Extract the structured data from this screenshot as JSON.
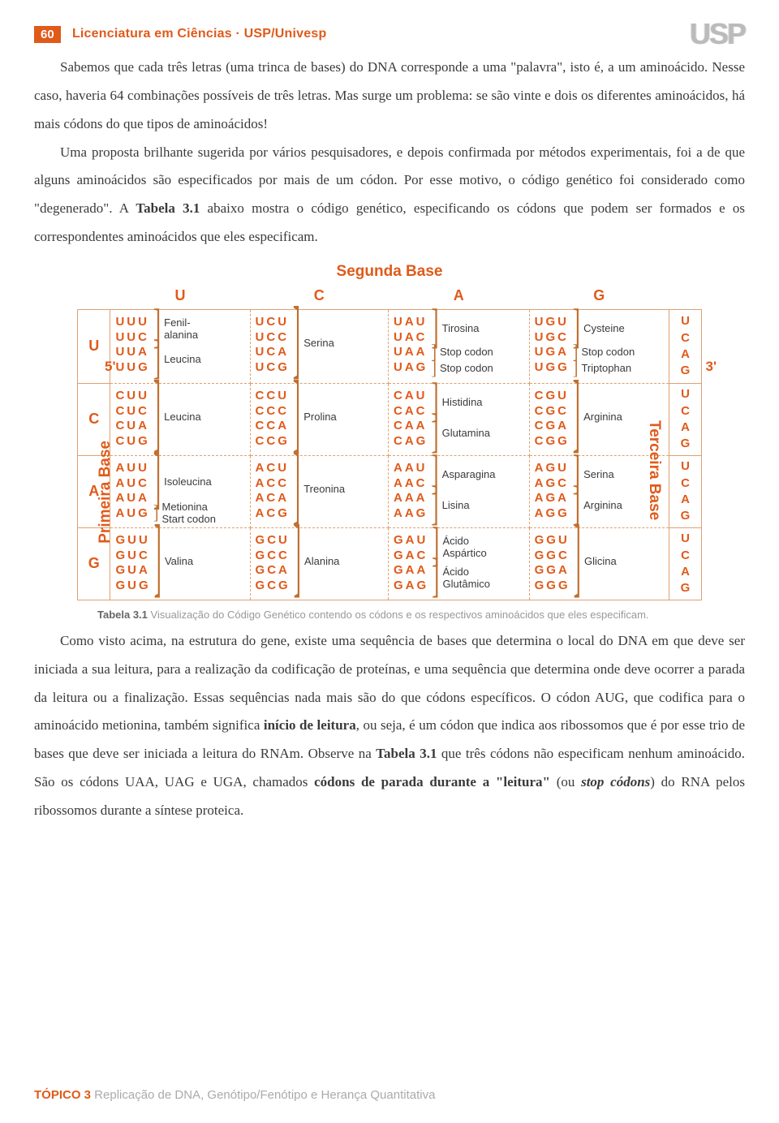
{
  "header": {
    "page_number": "60",
    "course": "Licenciatura em Ciências · USP/Univesp",
    "logo": "USP"
  },
  "paragraphs": {
    "p1": "Sabemos que cada três letras (uma trinca de bases) do DNA corresponde a uma \"palavra\", isto é, a um aminoácido. Nesse caso, haveria 64 combinações possíveis de três letras. Mas surge um problema: se são vinte e dois os diferentes aminoácidos, há mais códons do que tipos de aminoácidos!",
    "p2a": "Uma proposta brilhante sugerida por vários pesquisadores, e depois confirmada por métodos experimentais, foi a de que alguns aminoácidos são especificados por mais de um códon. Por esse motivo, o código genético foi considerado como \"degenerado\". A ",
    "p2b": "Tabela 3.1",
    "p2c": " abaixo mostra o código genético, especificando os códons que podem ser formados e os correspondentes aminoácidos que eles especificam.",
    "p3a": "Como visto acima, na estrutura do gene, existe uma sequência de bases que determina o local do DNA em que deve ser iniciada a sua leitura, para a realização da codificação de proteínas, e uma sequência que determina onde deve ocorrer a parada da leitura ou a finalização. Essas sequências nada mais são do que códons específicos. O códon AUG, que codifica para o aminoácido metionina, também significa ",
    "p3b": "início de leitura",
    "p3c": ", ou seja, é um códon que indica aos ribossomos que é por esse trio de bases que deve ser iniciada a leitura do RNAm. Observe na ",
    "p3d": "Tabela 3.1",
    "p3e": " que três códons não especificam nenhum aminoácido. São os códons UAA, UAG e UGA, chamados ",
    "p3f": "códons de parada durante a \"leitura\"",
    "p3g": " (ou ",
    "p3h": "stop códons",
    "p3i": ") do RNA pelos ribossomos durante a síntese proteica."
  },
  "table_labels": {
    "top": "Segunda Base",
    "left": "Primeira Base",
    "right": "Terceira Base",
    "five": "5'",
    "three": "3'",
    "cols": {
      "u": "U",
      "c": "C",
      "a": "A",
      "g": "G"
    },
    "rows": {
      "u": "U",
      "c": "C",
      "a": "A",
      "g": "G"
    },
    "third": {
      "u": "U",
      "c": "C",
      "a": "A",
      "g": "G"
    }
  },
  "codon_table": {
    "U": {
      "U": [
        [
          "UUU",
          "UUC",
          "Fenil-\nalanina"
        ],
        [
          "UUA",
          "UUG",
          "Leucina"
        ]
      ],
      "C": [
        [
          "UCU",
          "UCC",
          "UCA",
          "UCG",
          "Serina"
        ]
      ],
      "A": [
        [
          "UAU",
          "UAC",
          "Tirosina"
        ],
        [
          "UAA",
          "",
          "Stop codon"
        ],
        [
          "UAG",
          "",
          "Stop codon"
        ]
      ],
      "G": [
        [
          "UGU",
          "UGC",
          "Cysteine"
        ],
        [
          "UGA",
          "",
          "Stop codon"
        ],
        [
          "UGG",
          "",
          "Triptophan"
        ]
      ]
    },
    "C": {
      "U": [
        [
          "CUU",
          "CUC",
          "CUA",
          "CUG",
          "Leucina"
        ]
      ],
      "C": [
        [
          "CCU",
          "CCC",
          "CCA",
          "CCG",
          "Prolina"
        ]
      ],
      "A": [
        [
          "CAU",
          "CAC",
          "Histidina"
        ],
        [
          "CAA",
          "CAG",
          "Glutamina"
        ]
      ],
      "G": [
        [
          "CGU",
          "CGC",
          "CGA",
          "CGG",
          "Arginina"
        ]
      ]
    },
    "A": {
      "U": [
        [
          "AUU",
          "AUC",
          "AUA",
          "Isoleucina"
        ],
        [
          "AUG",
          "",
          "Metionina\nStart codon"
        ]
      ],
      "C": [
        [
          "ACU",
          "ACC",
          "ACA",
          "ACG",
          "Treonina"
        ]
      ],
      "A": [
        [
          "AAU",
          "AAC",
          "Asparagina"
        ],
        [
          "AAA",
          "AAG",
          "Lisina"
        ]
      ],
      "G": [
        [
          "AGU",
          "AGC",
          "Serina"
        ],
        [
          "AGA",
          "AGG",
          "Arginina"
        ]
      ]
    },
    "G": {
      "U": [
        [
          "GUU",
          "GUC",
          "GUA",
          "GUG",
          "Valina"
        ]
      ],
      "C": [
        [
          "GCU",
          "GCC",
          "GCA",
          "GCG",
          "Alanina"
        ]
      ],
      "A": [
        [
          "GAU",
          "GAC",
          "Ácido\nAspártico"
        ],
        [
          "GAA",
          "GAG",
          "Ácido\nGlutâmico"
        ]
      ],
      "G": [
        [
          "GGU",
          "GGC",
          "GGA",
          "GGG",
          "Glicina"
        ]
      ]
    }
  },
  "caption": {
    "bold": "Tabela 3.1",
    "rest": " Visualização do Código Genético contendo os códons e os respectivos aminoácidos que eles especificam."
  },
  "footer": {
    "topico": "TÓPICO 3",
    "rest": " Replicação de DNA, Genótipo/Fenótipo e Herança Quantitativa"
  },
  "colors": {
    "accent": "#e05a1a",
    "border": "#e0a070",
    "text": "#3a3a3a"
  }
}
